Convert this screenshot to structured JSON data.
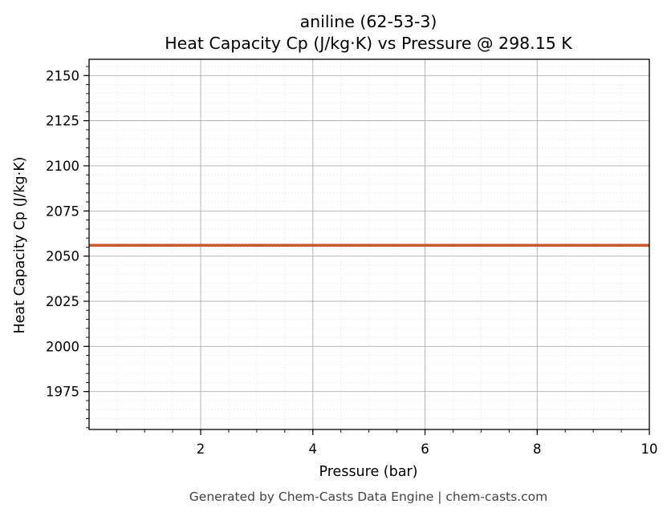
{
  "chart_data": {
    "type": "line",
    "title_line1": "aniline (62-53-3)",
    "title_line2": "Heat Capacity Cp (J/kg·K) vs Pressure @ 298.15 K",
    "xlabel": "Pressure (bar)",
    "ylabel": "Heat Capacity Cp (J/kg·K)",
    "xlim": [
      0.01,
      10
    ],
    "ylim": [
      1954,
      2159
    ],
    "x_ticks": [
      2,
      4,
      6,
      8,
      10
    ],
    "x_tick_labels": [
      "2",
      "4",
      "6",
      "8",
      "10"
    ],
    "y_ticks": [
      1975,
      2000,
      2025,
      2050,
      2075,
      2100,
      2125,
      2150
    ],
    "y_tick_labels": [
      "1975",
      "2000",
      "2025",
      "2050",
      "2075",
      "2100",
      "2125",
      "2150"
    ],
    "grid": true,
    "series": [
      {
        "color": "#c8552b",
        "x": [
          0.01,
          10
        ],
        "y": [
          2056,
          2056
        ]
      }
    ]
  },
  "footer": "Generated by Chem-Casts Data Engine | chem-casts.com"
}
